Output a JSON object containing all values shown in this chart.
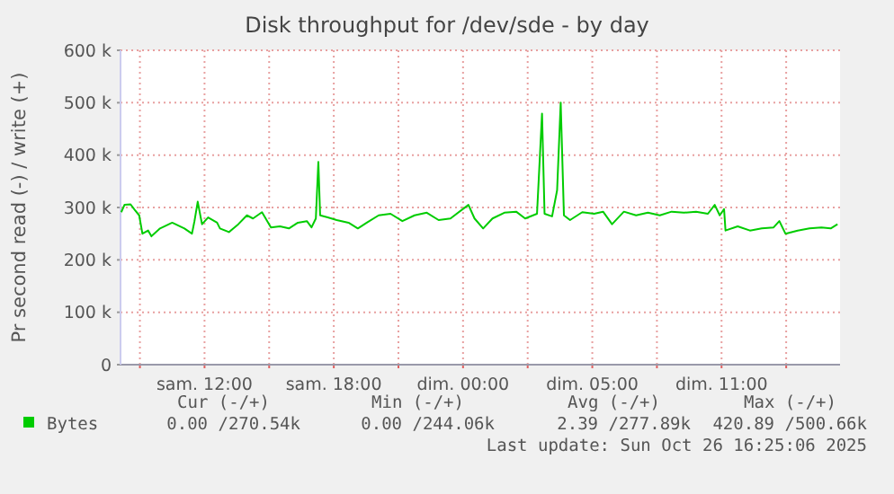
{
  "chart_data": {
    "type": "line",
    "title": "Disk throughput for /dev/sde - by day",
    "ylabel": "Pr second read (-) / write (+)",
    "xlim": [
      "2025-10-25T06:06",
      "2025-10-26T15:30"
    ],
    "xticks": [
      {
        "value": "2025-10-25T07:00",
        "label": null
      },
      {
        "value": "2025-10-25T10:00",
        "label": "sam. 12:00"
      },
      {
        "value": "2025-10-25T13:00",
        "label": null
      },
      {
        "value": "2025-10-25T16:00",
        "label": "sam. 18:00"
      },
      {
        "value": "2025-10-25T19:00",
        "label": null
      },
      {
        "value": "2025-10-25T22:00",
        "label": "dim. 00:00"
      },
      {
        "value": "2025-10-26T01:00",
        "label": null
      },
      {
        "value": "2025-10-26T04:00",
        "label": "dim. 05:00"
      },
      {
        "value": "2025-10-26T07:00",
        "label": null
      },
      {
        "value": "2025-10-26T10:00",
        "label": "dim. 11:00"
      },
      {
        "value": "2025-10-26T13:00",
        "label": null
      }
    ],
    "ylim": [
      0,
      600000
    ],
    "yticks": [
      0,
      {
        "value": 100000,
        "label": "100 k"
      },
      {
        "value": 200000,
        "label": "200 k"
      },
      {
        "value": 300000,
        "label": "300 k"
      },
      {
        "value": 400000,
        "label": "400 k"
      },
      {
        "value": 500000,
        "label": "500 k"
      },
      {
        "value": 600000,
        "label": "600 k"
      }
    ],
    "grid": true,
    "legend": "bottom",
    "marker": "none",
    "line_style": "solid",
    "series": [
      {
        "name": "Bytes",
        "color": "#00cc00",
        "x": [
          "2025-10-25T06:08",
          "2025-10-25T06:17",
          "2025-10-25T06:34",
          "2025-10-25T06:45",
          "2025-10-25T06:58",
          "2025-10-25T07:07",
          "2025-10-25T07:23",
          "2025-10-25T07:32",
          "2025-10-25T07:56",
          "2025-10-25T08:30",
          "2025-10-25T09:04",
          "2025-10-25T09:25",
          "2025-10-25T09:32",
          "2025-10-25T09:41",
          "2025-10-25T09:53",
          "2025-10-25T10:10",
          "2025-10-25T10:35",
          "2025-10-25T10:43",
          "2025-10-25T11:08",
          "2025-10-25T11:34",
          "2025-10-25T11:58",
          "2025-10-25T12:15",
          "2025-10-25T12:40",
          "2025-10-25T13:05",
          "2025-10-25T13:30",
          "2025-10-25T13:55",
          "2025-10-25T14:20",
          "2025-10-25T14:45",
          "2025-10-25T14:58",
          "2025-10-25T15:10",
          "2025-10-25T15:17",
          "2025-10-25T15:22",
          "2025-10-25T15:43",
          "2025-10-25T16:08",
          "2025-10-25T16:41",
          "2025-10-25T17:07",
          "2025-10-25T17:32",
          "2025-10-25T18:05",
          "2025-10-25T18:38",
          "2025-10-25T19:11",
          "2025-10-25T19:45",
          "2025-10-25T20:19",
          "2025-10-25T20:52",
          "2025-10-25T21:25",
          "2025-10-25T22:15",
          "2025-10-25T22:32",
          "2025-10-25T22:56",
          "2025-10-25T23:22",
          "2025-10-25T23:55",
          "2025-10-26T00:28",
          "2025-10-26T00:53",
          "2025-10-26T01:26",
          "2025-10-26T01:40",
          "2025-10-26T01:47",
          "2025-10-26T02:08",
          "2025-10-26T02:22",
          "2025-10-26T02:32",
          "2025-10-26T02:41",
          "2025-10-26T02:58",
          "2025-10-26T03:32",
          "2025-10-26T04:05",
          "2025-10-26T04:30",
          "2025-10-26T04:55",
          "2025-10-26T05:28",
          "2025-10-26T06:02",
          "2025-10-26T06:35",
          "2025-10-26T07:08",
          "2025-10-26T07:41",
          "2025-10-26T08:15",
          "2025-10-26T08:49",
          "2025-10-26T09:22",
          "2025-10-26T09:41",
          "2025-10-26T09:55",
          "2025-10-26T10:07",
          "2025-10-26T10:11",
          "2025-10-26T10:45",
          "2025-10-26T11:19",
          "2025-10-26T11:52",
          "2025-10-26T12:25",
          "2025-10-26T12:41",
          "2025-10-26T12:58",
          "2025-10-26T13:32",
          "2025-10-26T14:05",
          "2025-10-26T14:38",
          "2025-10-26T15:04",
          "2025-10-26T15:23"
        ],
        "values": [
          291000,
          305000,
          306000,
          296000,
          285000,
          250000,
          256000,
          245000,
          260000,
          271000,
          260000,
          250000,
          274000,
          311000,
          268000,
          281000,
          271000,
          260000,
          253000,
          268000,
          285000,
          279000,
          291000,
          262000,
          264000,
          260000,
          271000,
          274000,
          262000,
          279000,
          387000,
          285000,
          281000,
          276000,
          271000,
          260000,
          271000,
          285000,
          288000,
          274000,
          285000,
          290000,
          276000,
          279000,
          305000,
          279000,
          260000,
          279000,
          290000,
          292000,
          279000,
          288000,
          479000,
          288000,
          283000,
          333000,
          500000,
          285000,
          276000,
          291000,
          288000,
          292000,
          268000,
          292000,
          285000,
          290000,
          285000,
          292000,
          290000,
          292000,
          288000,
          305000,
          285000,
          297000,
          256000,
          264000,
          256000,
          260000,
          262000,
          274000,
          250000,
          256000,
          260000,
          262000,
          260000,
          268000
        ]
      }
    ],
    "annotations": [
      "Cur (-/+)",
      "Min (-/+)",
      "Avg (-/+)",
      "Max (-/+)",
      "0.00 /270.54k",
      "0.00 /244.06k",
      "2.39 /277.89k",
      "420.89 /500.66k",
      "Last update: Sun Oct 26 16:25:06 2025"
    ]
  }
}
